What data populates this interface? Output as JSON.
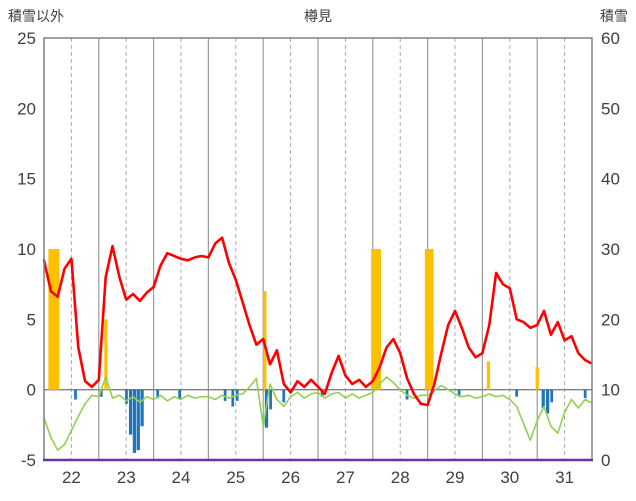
{
  "header": {
    "left_label": "積雪以外",
    "title": "樽見",
    "right_label": "積雪"
  },
  "chart_data": {
    "type": "mixed",
    "title": "樽見",
    "left_axis": {
      "label": "積雪以外",
      "min": -5,
      "max": 25,
      "ticks": [
        25,
        20,
        15,
        10,
        5,
        0,
        -5
      ]
    },
    "right_axis": {
      "label": "積雪",
      "min": 0,
      "max": 60,
      "ticks": [
        60,
        50,
        40,
        30,
        20,
        10,
        0
      ]
    },
    "x_axis": {
      "min": 22,
      "max": 32,
      "labels": [
        22,
        23,
        24,
        25,
        26,
        27,
        28,
        29,
        30,
        31
      ]
    },
    "grid": {
      "major_color": "#9b9b9b",
      "minor_color": "#ababab",
      "zero_color": "#808080",
      "border_color": "#808080",
      "baseline_color": "#7030A0",
      "text_color": "#404040"
    },
    "series": [
      {
        "name": "orange-bars",
        "type": "bar",
        "axis": "left",
        "color": "#FFC000",
        "bars": [
          [
            22.08,
            0.2,
            10
          ],
          [
            23.1,
            0.06,
            5
          ],
          [
            26.0,
            0.06,
            7
          ],
          [
            27.97,
            0.18,
            10
          ],
          [
            28.95,
            0.16,
            10
          ],
          [
            30.08,
            0.06,
            2
          ],
          [
            30.97,
            0.06,
            1.6
          ]
        ]
      },
      {
        "name": "blue-bars",
        "type": "bar",
        "axis": "left",
        "color": "#1F75BB",
        "bars": [
          [
            22.55,
            0.05,
            -0.7
          ],
          [
            23.02,
            0.05,
            -0.5
          ],
          [
            23.48,
            0.05,
            -1.0
          ],
          [
            23.55,
            0.06,
            -3.2
          ],
          [
            23.62,
            0.06,
            -4.5
          ],
          [
            23.69,
            0.06,
            -4.3
          ],
          [
            23.76,
            0.06,
            -2.6
          ],
          [
            24.05,
            0.05,
            -0.6
          ],
          [
            24.45,
            0.05,
            -0.7
          ],
          [
            25.28,
            0.05,
            -0.8
          ],
          [
            25.42,
            0.05,
            -1.2
          ],
          [
            25.5,
            0.05,
            -0.8
          ],
          [
            26.03,
            0.06,
            -2.7
          ],
          [
            26.11,
            0.05,
            -1.4
          ],
          [
            26.35,
            0.05,
            -0.9
          ],
          [
            27.05,
            0.05,
            -0.5
          ],
          [
            28.6,
            0.05,
            -0.7
          ],
          [
            29.55,
            0.05,
            -0.5
          ],
          [
            30.6,
            0.05,
            -0.5
          ],
          [
            31.08,
            0.06,
            -1.3
          ],
          [
            31.16,
            0.06,
            -1.7
          ],
          [
            31.24,
            0.05,
            -0.9
          ],
          [
            31.85,
            0.05,
            -0.6
          ]
        ]
      },
      {
        "name": "green-line",
        "type": "line",
        "axis": "left",
        "color": "#92D050",
        "width": 1.6,
        "points": [
          [
            22.0,
            -2.0
          ],
          [
            22.125,
            -3.4
          ],
          [
            22.25,
            -4.3
          ],
          [
            22.375,
            -3.9
          ],
          [
            22.5,
            -2.9
          ],
          [
            22.625,
            -1.9
          ],
          [
            22.75,
            -1.0
          ],
          [
            22.875,
            -0.4
          ],
          [
            23.0,
            -0.5
          ],
          [
            23.125,
            0.9
          ],
          [
            23.25,
            -0.6
          ],
          [
            23.375,
            -0.4
          ],
          [
            23.5,
            -0.8
          ],
          [
            23.625,
            -0.5
          ],
          [
            23.75,
            -0.9
          ],
          [
            23.875,
            -0.5
          ],
          [
            24.0,
            -0.7
          ],
          [
            24.125,
            -0.4
          ],
          [
            24.25,
            -0.8
          ],
          [
            24.375,
            -0.5
          ],
          [
            24.5,
            -0.7
          ],
          [
            24.625,
            -0.4
          ],
          [
            24.75,
            -0.6
          ],
          [
            24.875,
            -0.5
          ],
          [
            25.0,
            -0.5
          ],
          [
            25.125,
            -0.7
          ],
          [
            25.25,
            -0.4
          ],
          [
            25.375,
            -0.6
          ],
          [
            25.5,
            -0.4
          ],
          [
            25.625,
            -0.3
          ],
          [
            25.75,
            0.2
          ],
          [
            25.875,
            0.8
          ],
          [
            26.0,
            -2.6
          ],
          [
            26.125,
            0.4
          ],
          [
            26.25,
            -0.7
          ],
          [
            26.375,
            -1.2
          ],
          [
            26.5,
            -0.5
          ],
          [
            26.625,
            -0.2
          ],
          [
            26.75,
            -0.6
          ],
          [
            26.875,
            -0.3
          ],
          [
            27.0,
            -0.2
          ],
          [
            27.125,
            -0.6
          ],
          [
            27.25,
            -0.3
          ],
          [
            27.375,
            -0.2
          ],
          [
            27.5,
            -0.6
          ],
          [
            27.625,
            -0.3
          ],
          [
            27.75,
            -0.6
          ],
          [
            27.875,
            -0.4
          ],
          [
            28.0,
            -0.2
          ],
          [
            28.125,
            0.4
          ],
          [
            28.25,
            0.9
          ],
          [
            28.375,
            0.5
          ],
          [
            28.5,
            0.0
          ],
          [
            28.625,
            -0.4
          ],
          [
            28.75,
            -0.6
          ],
          [
            28.875,
            -0.4
          ],
          [
            29.0,
            -0.4
          ],
          [
            29.125,
            -0.1
          ],
          [
            29.25,
            0.3
          ],
          [
            29.375,
            0.0
          ],
          [
            29.5,
            -0.3
          ],
          [
            29.625,
            -0.5
          ],
          [
            29.75,
            -0.4
          ],
          [
            29.875,
            -0.6
          ],
          [
            30.0,
            -0.5
          ],
          [
            30.125,
            -0.3
          ],
          [
            30.25,
            -0.5
          ],
          [
            30.375,
            -0.4
          ],
          [
            30.5,
            -0.7
          ],
          [
            30.625,
            -1.2
          ],
          [
            30.75,
            -2.4
          ],
          [
            30.875,
            -3.6
          ],
          [
            31.0,
            -2.2
          ],
          [
            31.125,
            -1.2
          ],
          [
            31.25,
            -2.6
          ],
          [
            31.375,
            -3.1
          ],
          [
            31.5,
            -1.6
          ],
          [
            31.625,
            -0.7
          ],
          [
            31.75,
            -1.3
          ],
          [
            31.875,
            -0.7
          ],
          [
            31.97,
            -0.9
          ]
        ]
      },
      {
        "name": "red-line",
        "type": "line",
        "axis": "left",
        "color": "#FF0000",
        "width": 2.6,
        "points": [
          [
            22.0,
            9.2
          ],
          [
            22.125,
            7.0
          ],
          [
            22.25,
            6.6
          ],
          [
            22.375,
            8.6
          ],
          [
            22.5,
            9.3
          ],
          [
            22.625,
            3.0
          ],
          [
            22.75,
            0.6
          ],
          [
            22.875,
            0.2
          ],
          [
            23.0,
            0.7
          ],
          [
            23.125,
            8.0
          ],
          [
            23.25,
            10.2
          ],
          [
            23.375,
            8.0
          ],
          [
            23.5,
            6.4
          ],
          [
            23.625,
            6.8
          ],
          [
            23.75,
            6.3
          ],
          [
            23.875,
            6.9
          ],
          [
            24.0,
            7.3
          ],
          [
            24.125,
            8.8
          ],
          [
            24.25,
            9.7
          ],
          [
            24.375,
            9.5
          ],
          [
            24.5,
            9.3
          ],
          [
            24.625,
            9.2
          ],
          [
            24.75,
            9.4
          ],
          [
            24.875,
            9.5
          ],
          [
            25.0,
            9.4
          ],
          [
            25.125,
            10.4
          ],
          [
            25.25,
            10.8
          ],
          [
            25.375,
            9.0
          ],
          [
            25.5,
            7.8
          ],
          [
            25.625,
            6.2
          ],
          [
            25.75,
            4.6
          ],
          [
            25.875,
            3.2
          ],
          [
            26.0,
            3.6
          ],
          [
            26.125,
            1.8
          ],
          [
            26.25,
            2.8
          ],
          [
            26.375,
            0.4
          ],
          [
            26.5,
            -0.2
          ],
          [
            26.625,
            0.6
          ],
          [
            26.75,
            0.2
          ],
          [
            26.875,
            0.7
          ],
          [
            27.0,
            0.2
          ],
          [
            27.125,
            -0.3
          ],
          [
            27.25,
            1.2
          ],
          [
            27.375,
            2.4
          ],
          [
            27.5,
            1.0
          ],
          [
            27.625,
            0.4
          ],
          [
            27.75,
            0.7
          ],
          [
            27.875,
            0.2
          ],
          [
            28.0,
            0.6
          ],
          [
            28.125,
            1.6
          ],
          [
            28.25,
            3.0
          ],
          [
            28.375,
            3.6
          ],
          [
            28.5,
            2.6
          ],
          [
            28.625,
            0.8
          ],
          [
            28.75,
            -0.3
          ],
          [
            28.875,
            -1.0
          ],
          [
            29.0,
            -1.1
          ],
          [
            29.125,
            0.4
          ],
          [
            29.25,
            2.6
          ],
          [
            29.375,
            4.6
          ],
          [
            29.5,
            5.6
          ],
          [
            29.625,
            4.4
          ],
          [
            29.75,
            3.0
          ],
          [
            29.875,
            2.3
          ],
          [
            30.0,
            2.6
          ],
          [
            30.125,
            4.6
          ],
          [
            30.25,
            8.3
          ],
          [
            30.375,
            7.5
          ],
          [
            30.5,
            7.2
          ],
          [
            30.625,
            5.0
          ],
          [
            30.75,
            4.8
          ],
          [
            30.875,
            4.4
          ],
          [
            31.0,
            4.6
          ],
          [
            31.125,
            5.6
          ],
          [
            31.25,
            3.9
          ],
          [
            31.375,
            4.8
          ],
          [
            31.5,
            3.5
          ],
          [
            31.625,
            3.8
          ],
          [
            31.75,
            2.6
          ],
          [
            31.875,
            2.1
          ],
          [
            31.97,
            1.9
          ]
        ]
      }
    ]
  }
}
